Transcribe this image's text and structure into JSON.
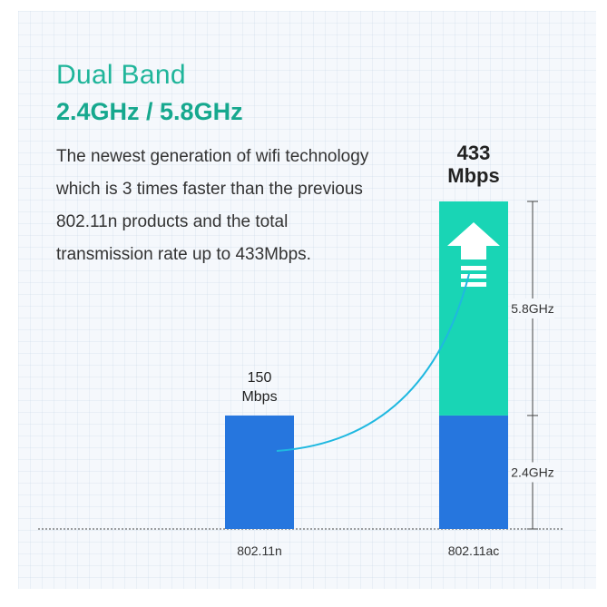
{
  "header": {
    "title": "Dual Band",
    "subtitle": "2.4GHz / 5.8GHz",
    "description_lines": [
      "The newest generation of wifi technology",
      "which is 3 times faster than the previous",
      "802.11n products and the total",
      "transmission rate up to 433Mbps."
    ]
  },
  "colors": {
    "accent": "#1fb59a",
    "bar_blue": "#2676de",
    "bar_teal": "#19d5b5",
    "curve": "#1fb8e0",
    "text": "#333333"
  },
  "chart_data": {
    "type": "bar",
    "stacked": true,
    "categories": [
      "802.11n",
      "802.11ac"
    ],
    "series": [
      {
        "name": "2.4GHz",
        "values": [
          150,
          150
        ]
      },
      {
        "name": "5.8GHz",
        "values": [
          0,
          283
        ]
      }
    ],
    "data_labels": [
      {
        "line1": "150",
        "line2": "Mbps"
      },
      {
        "line1": "433",
        "line2": "Mbps"
      }
    ],
    "ylim": [
      0,
      433
    ],
    "title": "",
    "xlabel": "",
    "ylabel": ""
  }
}
